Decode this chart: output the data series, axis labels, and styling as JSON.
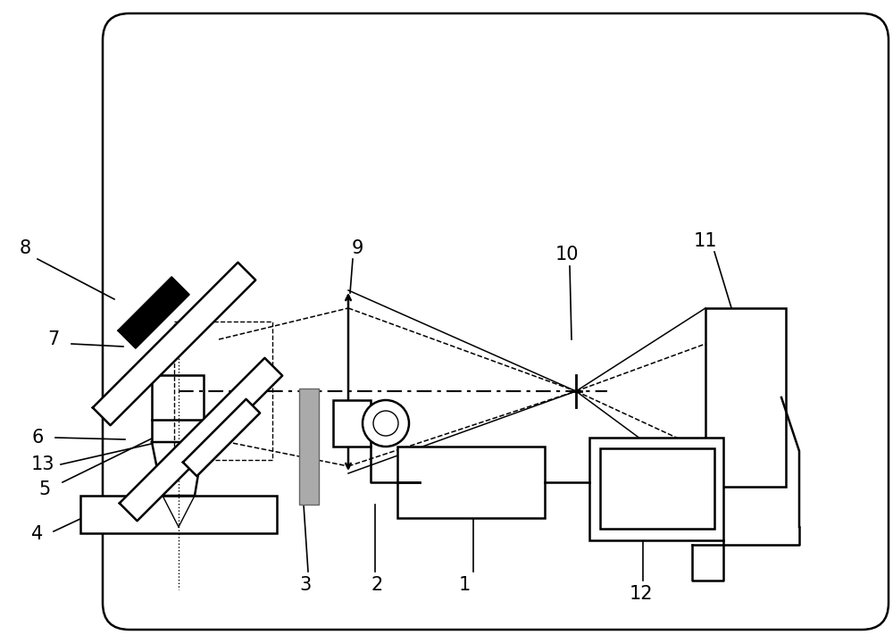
{
  "background_color": "#ffffff",
  "fig_width": 10.0,
  "fig_height": 7.11,
  "black": "#000000",
  "gray": "#999999",
  "darkgray": "#555555"
}
